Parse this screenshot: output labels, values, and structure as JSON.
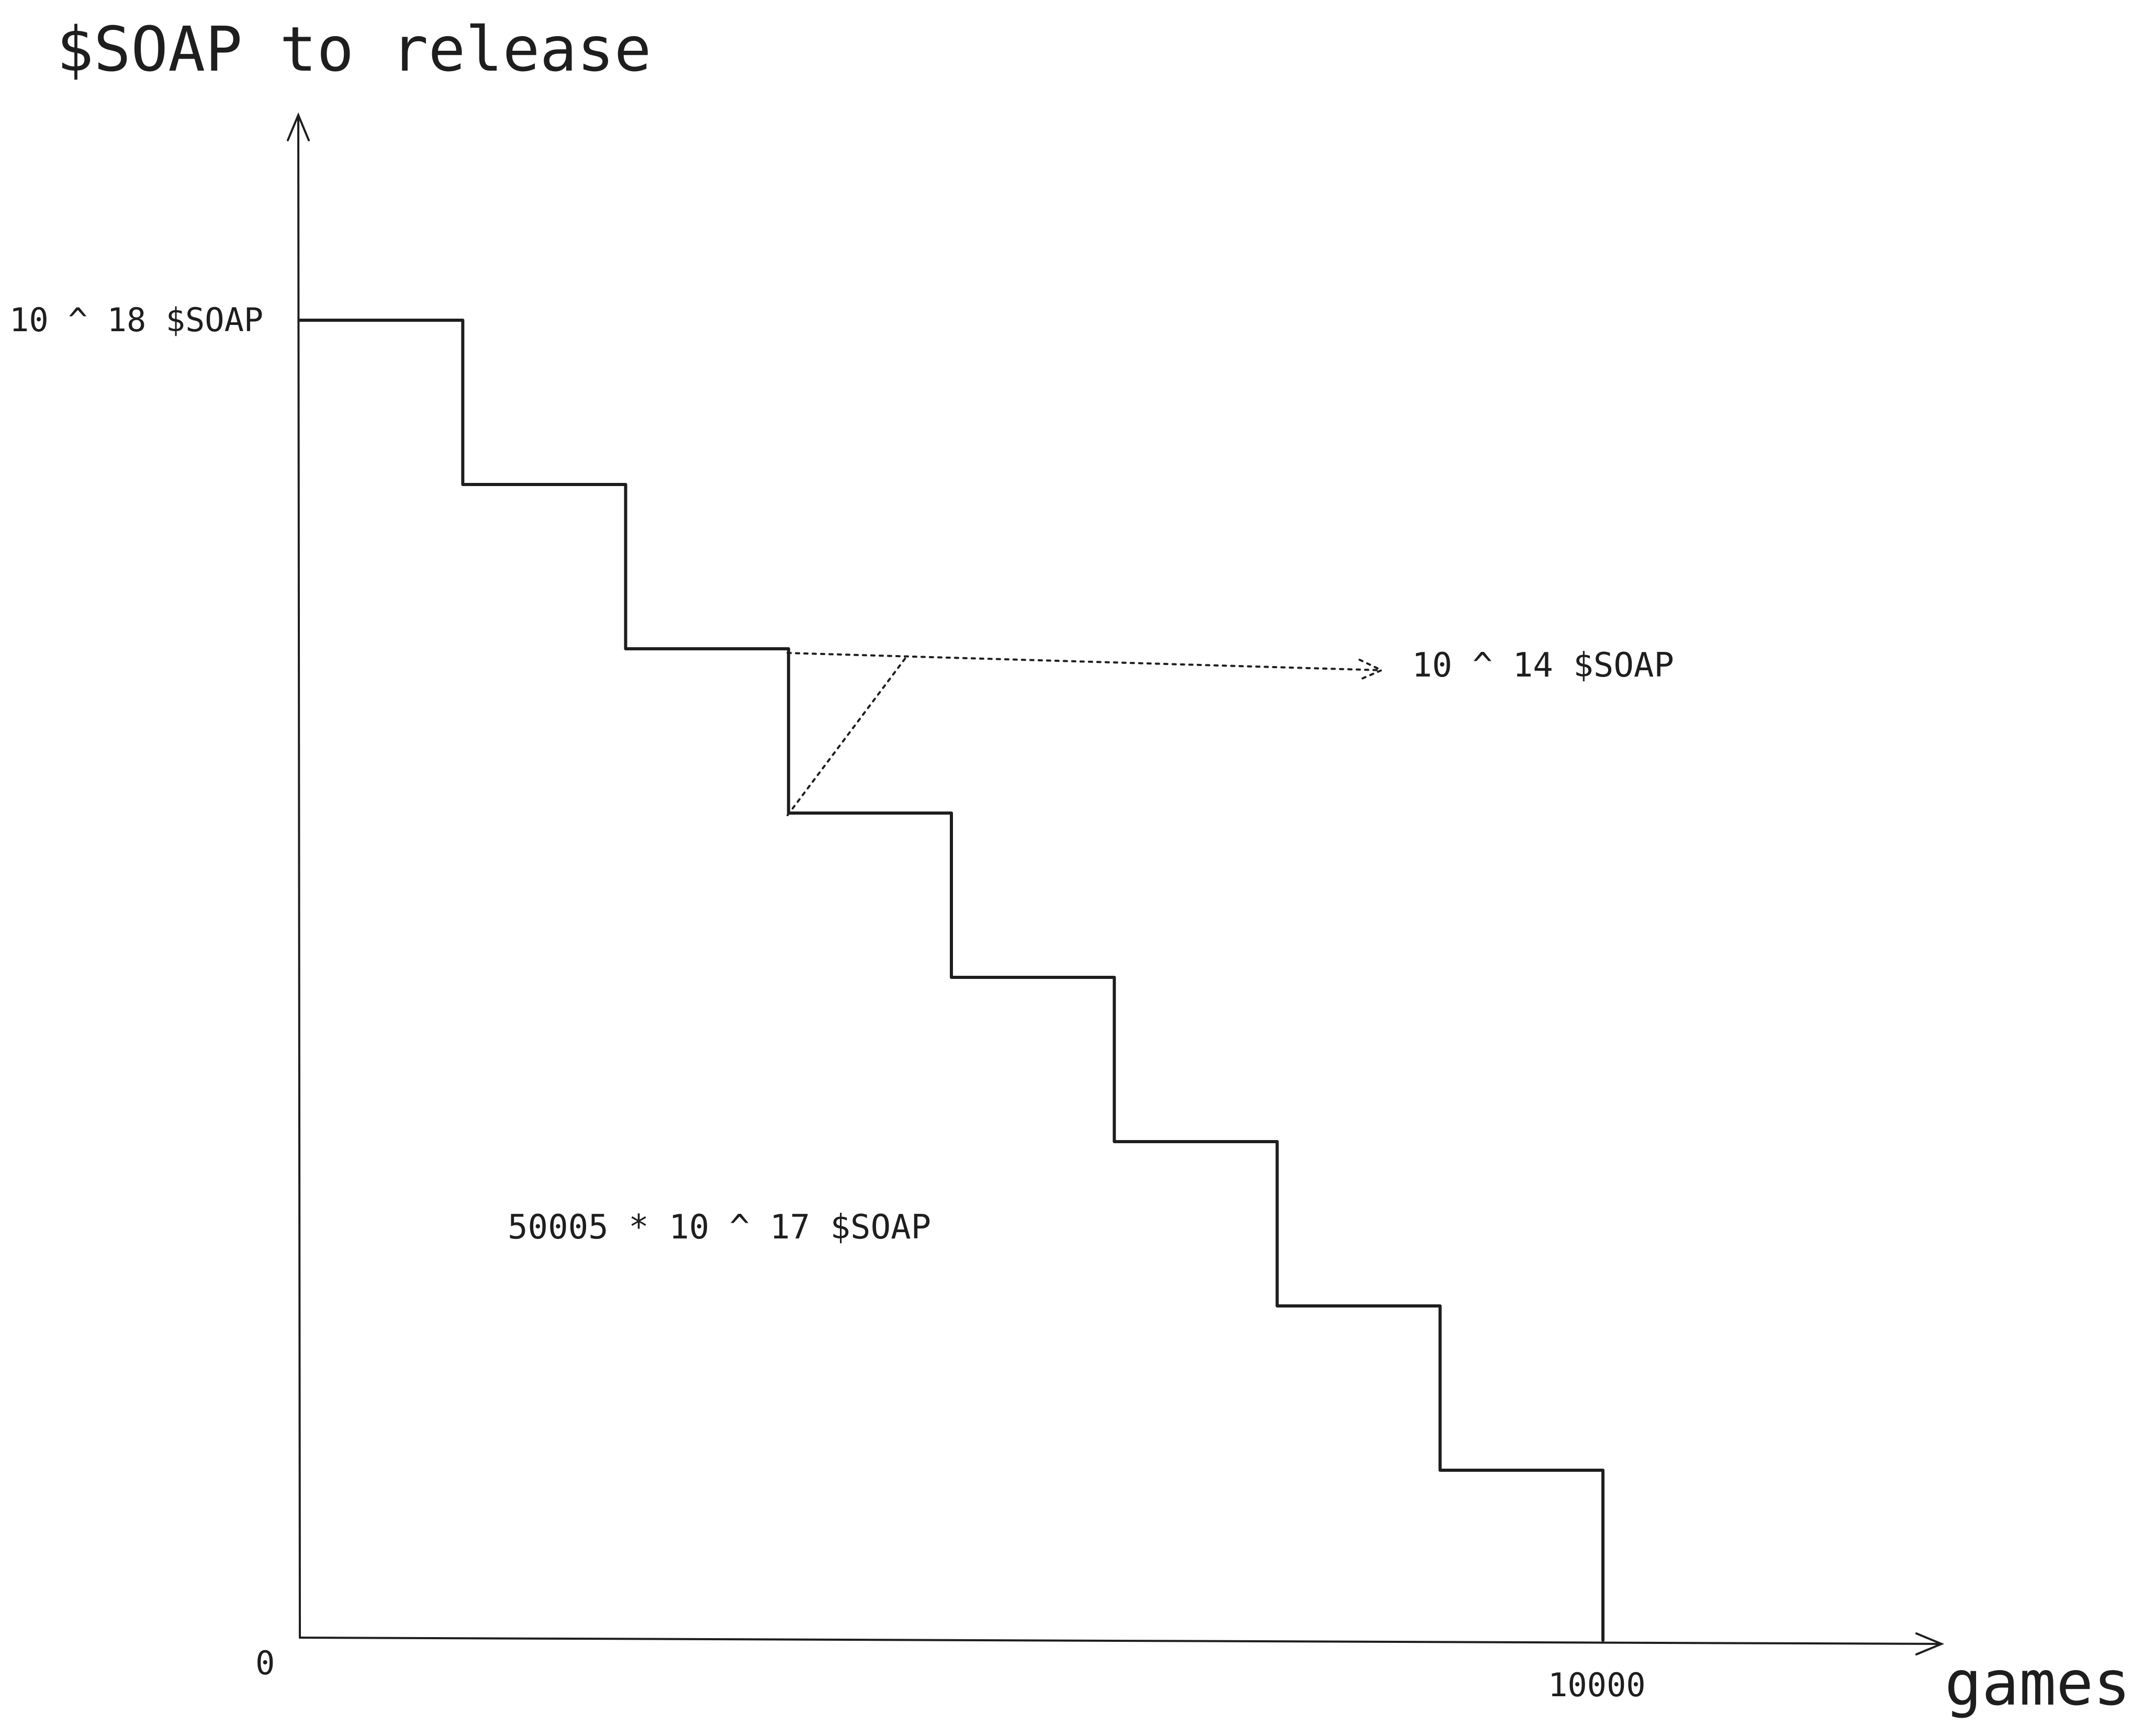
{
  "chart_data": {
    "type": "line",
    "title": "$SOAP to release",
    "xlabel": "games",
    "ylabel": "",
    "x_ticks": [
      "0",
      "10000"
    ],
    "y_ticks": [
      "10 ^ 18 $SOAP"
    ],
    "xlim": [
      0,
      10000
    ],
    "steps": [
      {
        "x_start": 0,
        "x_end": 1250,
        "level": 10
      },
      {
        "x_start": 1250,
        "x_end": 2500,
        "level": 9
      },
      {
        "x_start": 2500,
        "x_end": 3750,
        "level": 8
      },
      {
        "x_start": 3750,
        "x_end": 5000,
        "level": 7
      },
      {
        "x_start": 5000,
        "x_end": 6250,
        "level": 6
      },
      {
        "x_start": 6250,
        "x_end": 7500,
        "level": 5
      },
      {
        "x_start": 7500,
        "x_end": 8750,
        "level": 4
      },
      {
        "x_start": 8750,
        "x_end": 10000,
        "level": 3
      }
    ],
    "annotations": [
      {
        "text": "10 ^ 14 $SOAP",
        "points_to_step": 3
      },
      {
        "text": "50005 * 10 ^ 17 $SOAP"
      }
    ],
    "grid": false,
    "legend": "none"
  }
}
